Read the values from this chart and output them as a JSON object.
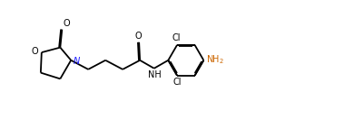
{
  "bg_color": "#ffffff",
  "line_color": "#000000",
  "N_color": "#1a1aff",
  "O_color": "#000000",
  "NH2_color": "#cc6600",
  "bond_lw": 1.3,
  "fig_w": 4.01,
  "fig_h": 1.43,
  "dpi": 100,
  "xlim": [
    0,
    4.01
  ],
  "ylim": [
    0,
    1.43
  ]
}
